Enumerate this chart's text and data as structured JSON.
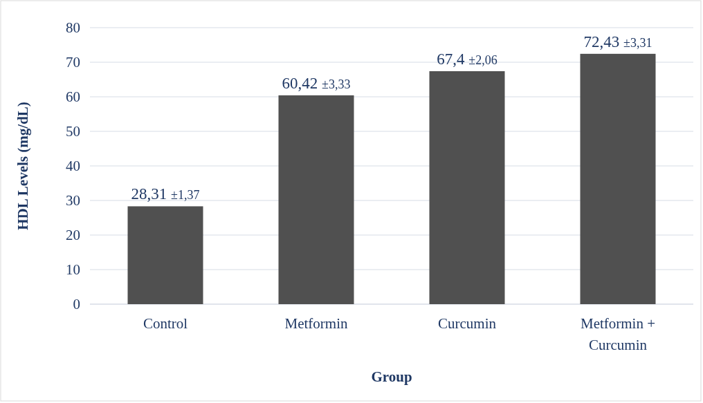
{
  "chart_data": {
    "type": "bar",
    "xlabel": "Group",
    "ylabel": "HDL Levels (mg/dL)",
    "categories": [
      "Control",
      "Metformin",
      "Curcumin",
      "Metformin + Curcumin"
    ],
    "values": [
      28.31,
      60.42,
      67.4,
      72.43
    ],
    "value_labels": [
      "28,31 ±1,37",
      "60,42 ±3,33",
      "67,4 ±2,06",
      "72,43 ±3,31"
    ],
    "color": "#505050",
    "ylim": [
      0,
      80
    ],
    "yticks": [
      0,
      10,
      20,
      30,
      40,
      50,
      60,
      70,
      80
    ],
    "grid": "y"
  }
}
